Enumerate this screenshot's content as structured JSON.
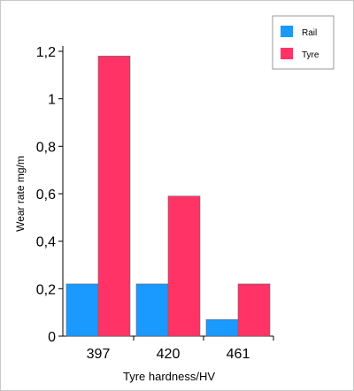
{
  "chart_data": {
    "type": "bar",
    "categories": [
      "397",
      "420",
      "461"
    ],
    "series": [
      {
        "name": "Rail",
        "values": [
          0.22,
          0.22,
          0.07
        ],
        "color": "#1a99ff"
      },
      {
        "name": "Tyre",
        "values": [
          1.18,
          0.59,
          0.22
        ],
        "color": "#ff3366"
      }
    ],
    "xlabel": "Tyre hardness/HV",
    "ylabel": "Wear rate mg/m",
    "ylim": [
      0,
      1.2
    ],
    "yticks": [
      {
        "value": 0,
        "label": "0"
      },
      {
        "value": 0.2,
        "label": "0,2"
      },
      {
        "value": 0.4,
        "label": "0,4"
      },
      {
        "value": 0.6,
        "label": "0,6"
      },
      {
        "value": 0.8,
        "label": "0,8"
      },
      {
        "value": 1.0,
        "label": "1"
      },
      {
        "value": 1.2,
        "label": "1,2"
      }
    ],
    "grid": false,
    "legend_position": "top-right"
  }
}
